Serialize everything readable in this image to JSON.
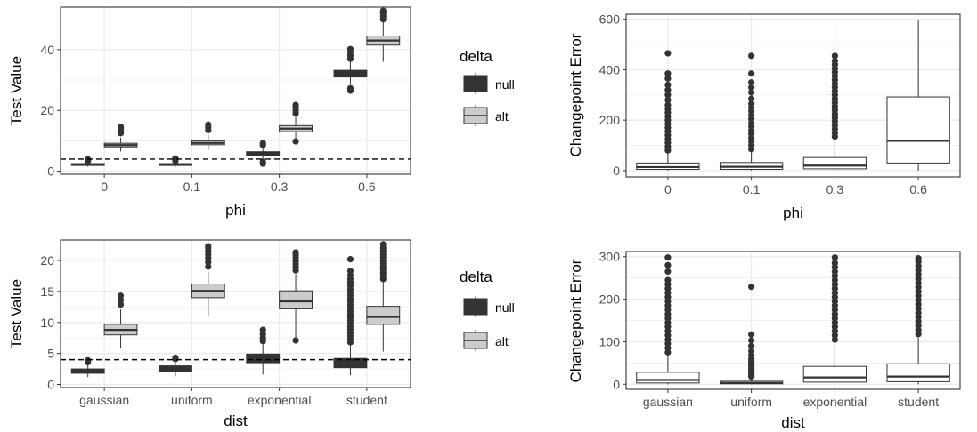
{
  "colors": {
    "null": "#333333",
    "alt": "#cccccc",
    "grid": "#ebebeb",
    "panel_border": "#333333",
    "ref_line": "#000000"
  },
  "legend": {
    "title": "delta",
    "items": [
      {
        "key": "null",
        "label": "null"
      },
      {
        "key": "alt",
        "label": "alt"
      }
    ]
  },
  "chart_data": [
    {
      "type": "box",
      "xlabel": "phi",
      "ylabel": "Test Value",
      "categories": [
        "0",
        "0.1",
        "0.3",
        "0.6"
      ],
      "yticks": [
        0,
        20,
        40
      ],
      "ylim": [
        -1,
        54
      ],
      "reference_line": 4,
      "grouped": true,
      "series": [
        {
          "name": "null",
          "boxes": [
            {
              "lw": 1.5,
              "q1": 1.9,
              "med": 2.2,
              "q3": 2.5,
              "uw": 3.0,
              "outliers": [
                3.4,
                3.7,
                3.9
              ]
            },
            {
              "lw": 1.4,
              "q1": 1.9,
              "med": 2.2,
              "q3": 2.5,
              "uw": 3.0,
              "outliers": [
                3.4,
                3.8,
                4.2
              ]
            },
            {
              "lw": 3.8,
              "q1": 5.2,
              "med": 5.8,
              "q3": 6.4,
              "uw": 8.0,
              "outliers": [
                2.5,
                3.1,
                8.6,
                9.2
              ]
            },
            {
              "lw": 28.5,
              "q1": 31.0,
              "med": 32.2,
              "q3": 33.2,
              "uw": 36.0,
              "outliers": [
                26.5,
                27.3,
                37.0,
                38.1,
                39.2,
                40.2
              ]
            }
          ]
        },
        {
          "name": "alt",
          "boxes": [
            {
              "lw": 6.5,
              "q1": 8.0,
              "med": 8.6,
              "q3": 9.2,
              "uw": 11.0,
              "outliers": [
                12.5,
                13.3,
                14.0,
                14.6
              ]
            },
            {
              "lw": 7.0,
              "q1": 8.7,
              "med": 9.3,
              "q3": 10.0,
              "uw": 12.0,
              "outliers": [
                13.5,
                14.5,
                15.3
              ]
            },
            {
              "lw": 10.5,
              "q1": 13.0,
              "med": 14.0,
              "q3": 15.0,
              "uw": 18.0,
              "outliers": [
                9.8,
                19.0,
                20.0,
                21.0,
                21.8
              ]
            },
            {
              "lw": 36.0,
              "q1": 41.5,
              "med": 43.0,
              "q3": 44.5,
              "uw": 49.0,
              "outliers": [
                50.0,
                51.0,
                52.0,
                52.8
              ]
            }
          ]
        }
      ]
    },
    {
      "type": "box",
      "xlabel": "phi",
      "ylabel": "Changepoint Error",
      "categories": [
        "0",
        "0.1",
        "0.3",
        "0.6"
      ],
      "yticks": [
        0,
        200,
        400,
        600
      ],
      "ylim": [
        -25,
        620
      ],
      "grouped": false,
      "series": [
        {
          "name": "",
          "boxes": [
            {
              "lw": 0,
              "q1": 5,
              "med": 14,
              "q3": 30,
              "uw": 70,
              "outliers": [
                80,
                95,
                110,
                125,
                140,
                155,
                170,
                185,
                200,
                215,
                230,
                245,
                260,
                280,
                300,
                320,
                340,
                365,
                385,
                465
              ]
            },
            {
              "lw": 0,
              "q1": 5,
              "med": 15,
              "q3": 32,
              "uw": 75,
              "outliers": [
                85,
                100,
                115,
                130,
                145,
                160,
                175,
                190,
                205,
                220,
                235,
                250,
                265,
                285,
                310,
                330,
                350,
                385,
                455
              ]
            },
            {
              "lw": 0,
              "q1": 7,
              "med": 20,
              "q3": 52,
              "uw": 125,
              "outliers": [
                135,
                150,
                165,
                180,
                195,
                210,
                225,
                240,
                255,
                270,
                285,
                300,
                315,
                330,
                345,
                360,
                375,
                390,
                405,
                420,
                435,
                455
              ]
            },
            {
              "lw": 0,
              "q1": 30,
              "med": 118,
              "q3": 292,
              "uw": 598,
              "outliers": []
            }
          ]
        }
      ]
    },
    {
      "type": "box",
      "xlabel": "dist",
      "ylabel": "Test Value",
      "categories": [
        "gaussian",
        "uniform",
        "exponential",
        "student"
      ],
      "yticks": [
        0,
        5,
        10,
        15,
        20
      ],
      "ylim": [
        -0.5,
        23.3
      ],
      "reference_line": 4,
      "grouped": true,
      "series": [
        {
          "name": "null",
          "boxes": [
            {
              "lw": 1.2,
              "q1": 1.8,
              "med": 2.1,
              "q3": 2.5,
              "uw": 3.4,
              "outliers": [
                3.6,
                3.9
              ]
            },
            {
              "lw": 1.3,
              "q1": 2.1,
              "med": 2.5,
              "q3": 3.0,
              "uw": 3.8,
              "outliers": [
                4.1,
                4.3
              ]
            },
            {
              "lw": 1.6,
              "q1": 3.5,
              "med": 4.1,
              "q3": 4.9,
              "uw": 6.5,
              "outliers": [
                7.0,
                7.5,
                8.1,
                8.8
              ]
            },
            {
              "lw": 1.5,
              "q1": 2.7,
              "med": 3.4,
              "q3": 4.2,
              "uw": 6.3,
              "outliers": [
                6.8,
                7.3,
                7.8,
                8.3,
                8.8,
                9.3,
                9.8,
                10.3,
                10.8,
                11.3,
                11.8,
                12.3,
                12.8,
                13.3,
                13.8,
                14.3,
                14.8,
                15.3,
                15.9,
                16.5,
                17.0,
                17.6,
                18.3,
                20.2
              ]
            }
          ]
        },
        {
          "name": "alt",
          "boxes": [
            {
              "lw": 5.8,
              "q1": 8.0,
              "med": 8.8,
              "q3": 9.7,
              "uw": 12.1,
              "outliers": [
                12.9,
                13.6,
                14.3
              ]
            },
            {
              "lw": 10.9,
              "q1": 14.0,
              "med": 15.1,
              "q3": 16.2,
              "uw": 18.2,
              "outliers": [
                19.0,
                19.7,
                20.4,
                21.0,
                21.5,
                22.0,
                22.3
              ]
            },
            {
              "lw": 7.2,
              "q1": 12.2,
              "med": 13.4,
              "q3": 15.1,
              "uw": 17.8,
              "outliers": [
                18.4,
                18.9,
                19.4,
                19.9,
                20.4,
                20.9,
                21.3,
                7.1
              ]
            },
            {
              "lw": 5.3,
              "q1": 9.7,
              "med": 10.9,
              "q3": 12.6,
              "uw": 16.5,
              "outliers": [
                17.0,
                17.5,
                18.0,
                18.5,
                19.0,
                19.5,
                20.0,
                20.5,
                21.0,
                21.5,
                22.0,
                22.6
              ]
            }
          ]
        }
      ]
    },
    {
      "type": "box",
      "xlabel": "dist",
      "ylabel": "Changepoint Error",
      "categories": [
        "gaussian",
        "uniform",
        "exponential",
        "student"
      ],
      "yticks": [
        0,
        100,
        200,
        300
      ],
      "ylim": [
        -12,
        312
      ],
      "grouped": false,
      "series": [
        {
          "name": "",
          "boxes": [
            {
              "lw": 0,
              "q1": 3,
              "med": 10,
              "q3": 28,
              "uw": 70,
              "outliers": [
                75,
                85,
                95,
                105,
                115,
                125,
                135,
                145,
                155,
                165,
                175,
                185,
                195,
                205,
                215,
                225,
                235,
                245,
                265,
                280,
                298
              ]
            },
            {
              "lw": 0,
              "q1": 1,
              "med": 3,
              "q3": 7,
              "uw": 15,
              "outliers": [
                18,
                22,
                26,
                30,
                34,
                38,
                42,
                46,
                50,
                55,
                60,
                68,
                78,
                90,
                103,
                117,
                229
              ]
            },
            {
              "lw": 0,
              "q1": 5,
              "med": 16,
              "q3": 42,
              "uw": 98,
              "outliers": [
                105,
                115,
                125,
                135,
                145,
                155,
                165,
                175,
                185,
                195,
                205,
                215,
                225,
                235,
                245,
                255,
                265,
                275,
                285,
                298
              ]
            },
            {
              "lw": 0,
              "q1": 6,
              "med": 18,
              "q3": 48,
              "uw": 110,
              "outliers": [
                118,
                128,
                138,
                148,
                158,
                168,
                178,
                188,
                198,
                208,
                218,
                228,
                238,
                248,
                258,
                268,
                278,
                288,
                296
              ]
            }
          ]
        }
      ]
    }
  ]
}
